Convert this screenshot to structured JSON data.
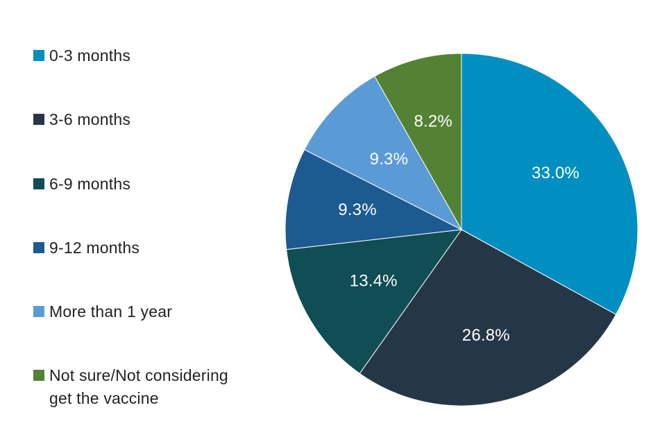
{
  "chart_data": {
    "type": "pie",
    "title": "",
    "categories": [
      "0-3 months",
      "3-6 months",
      "6-9 months",
      "9-12 months",
      "More than 1 year",
      "Not sure/Not considering\nget the vaccine"
    ],
    "values": [
      33.0,
      26.8,
      13.4,
      9.3,
      9.3,
      8.2
    ],
    "data_labels": [
      "33.0%",
      "26.8%",
      "13.4%",
      "9.3%",
      "9.3%",
      "8.2%"
    ],
    "colors": [
      "#008fc0",
      "#253746",
      "#114d54",
      "#1d5a91",
      "#5a9bd5",
      "#548235"
    ],
    "legend_position": "left",
    "start_angle": "top",
    "direction": "clockwise"
  }
}
